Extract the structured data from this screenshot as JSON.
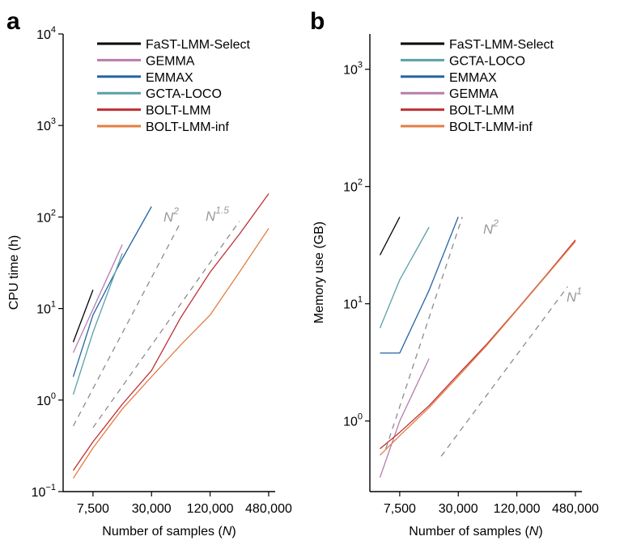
{
  "chart_data": [
    {
      "panel": "a",
      "type": "line",
      "ylabel": "CPU time (h)",
      "xlabel": "Number of samples (",
      "xlabel_italic": "N",
      "xlabel_end": ")",
      "xscale": "log",
      "yscale": "log",
      "xlim": [
        3700,
        560000
      ],
      "ylim": [
        0.1,
        10000
      ],
      "x_ticks": [
        7500,
        30000,
        120000,
        480000
      ],
      "x_tick_labels": [
        "7,500",
        "30,000",
        "120,000",
        "480,000"
      ],
      "y_ticks": [
        0.1,
        1,
        10,
        100,
        1000,
        10000
      ],
      "y_tick_labels": [
        {
          "b": "10",
          "e": "−1"
        },
        {
          "b": "10",
          "e": "0"
        },
        {
          "b": "10",
          "e": "1"
        },
        {
          "b": "10",
          "e": "2"
        },
        {
          "b": "10",
          "e": "3"
        },
        {
          "b": "10",
          "e": "4"
        }
      ],
      "legend_position": "top-left",
      "series": [
        {
          "name": "FaST-LMM-Select",
          "color": "#000000",
          "x": [
            4700,
            7500
          ],
          "y": [
            4.3,
            16
          ]
        },
        {
          "name": "GEMMA",
          "color": "#b87cad",
          "x": [
            4700,
            15000
          ],
          "y": [
            3.3,
            50
          ]
        },
        {
          "name": "EMMAX",
          "color": "#2464a4",
          "x": [
            4700,
            7500,
            15000,
            30000
          ],
          "y": [
            1.8,
            8.5,
            35,
            130
          ]
        },
        {
          "name": "GCTA-LOCO",
          "color": "#5aa0a8",
          "x": [
            4700,
            7500,
            15000
          ],
          "y": [
            1.15,
            5.5,
            40
          ]
        },
        {
          "name": "BOLT-LMM",
          "color": "#bf2f35",
          "x": [
            4700,
            7500,
            15000,
            30000,
            60000,
            120000,
            240000,
            480000
          ],
          "y": [
            0.17,
            0.35,
            0.9,
            2.1,
            8,
            25,
            65,
            180
          ]
        },
        {
          "name": "BOLT-LMM-inf",
          "color": "#e37d42",
          "x": [
            4700,
            7500,
            15000,
            30000,
            60000,
            120000,
            240000,
            480000
          ],
          "y": [
            0.14,
            0.3,
            0.8,
            1.8,
            4,
            8.5,
            25,
            75
          ]
        }
      ],
      "reference_lines": [
        {
          "label_base": "N",
          "label_exp": "2",
          "x": [
            4700,
            60000
          ],
          "y": [
            0.52,
            88
          ]
        },
        {
          "label_base": "N",
          "label_exp": "1.5",
          "x": [
            7500,
            240000
          ],
          "y": [
            0.5,
            90
          ]
        }
      ]
    },
    {
      "panel": "b",
      "type": "line",
      "ylabel": "Memory use (GB)",
      "xlabel": "Number of samples (",
      "xlabel_italic": "N",
      "xlabel_end": ")",
      "xscale": "log",
      "yscale": "log",
      "xlim": [
        3700,
        560000
      ],
      "ylim": [
        0.25,
        2000
      ],
      "x_ticks": [
        7500,
        30000,
        120000,
        480000
      ],
      "x_tick_labels": [
        "7,500",
        "30,000",
        "120,000",
        "480,000"
      ],
      "y_ticks": [
        1,
        10,
        100,
        1000
      ],
      "y_tick_labels": [
        {
          "b": "10",
          "e": "0"
        },
        {
          "b": "10",
          "e": "1"
        },
        {
          "b": "10",
          "e": "2"
        },
        {
          "b": "10",
          "e": "3"
        }
      ],
      "legend_position": "top-left",
      "series": [
        {
          "name": "FaST-LMM-Select",
          "color": "#000000",
          "x": [
            4700,
            7500
          ],
          "y": [
            26,
            55
          ]
        },
        {
          "name": "GCTA-LOCO",
          "color": "#5aa0a8",
          "x": [
            4700,
            7500,
            15000
          ],
          "y": [
            6.2,
            16,
            45
          ]
        },
        {
          "name": "EMMAX",
          "color": "#2464a4",
          "x": [
            4700,
            7500,
            15000,
            30000
          ],
          "y": [
            3.8,
            3.8,
            13,
            55
          ]
        },
        {
          "name": "GEMMA",
          "color": "#b87cad",
          "x": [
            4700,
            7500,
            15000
          ],
          "y": [
            0.33,
            1,
            3.4
          ]
        },
        {
          "name": "BOLT-LMM",
          "color": "#bf2f35",
          "x": [
            4700,
            7500,
            15000,
            30000,
            60000,
            120000,
            240000,
            480000
          ],
          "y": [
            0.58,
            0.8,
            1.35,
            2.5,
            4.6,
            8.9,
            17.5,
            35
          ]
        },
        {
          "name": "BOLT-LMM-inf",
          "color": "#e37d42",
          "x": [
            4700,
            7500,
            15000,
            30000,
            60000,
            120000,
            240000,
            480000
          ],
          "y": [
            0.51,
            0.75,
            1.3,
            2.4,
            4.5,
            8.8,
            17.3,
            34
          ]
        }
      ],
      "reference_lines": [
        {
          "label_base": "N",
          "label_exp": "2",
          "x": [
            5400,
            33000
          ],
          "y": [
            0.58,
            55
          ]
        },
        {
          "label_base": "N",
          "label_exp": "1",
          "x": [
            20000,
            400000
          ],
          "y": [
            0.5,
            14
          ]
        }
      ]
    }
  ]
}
